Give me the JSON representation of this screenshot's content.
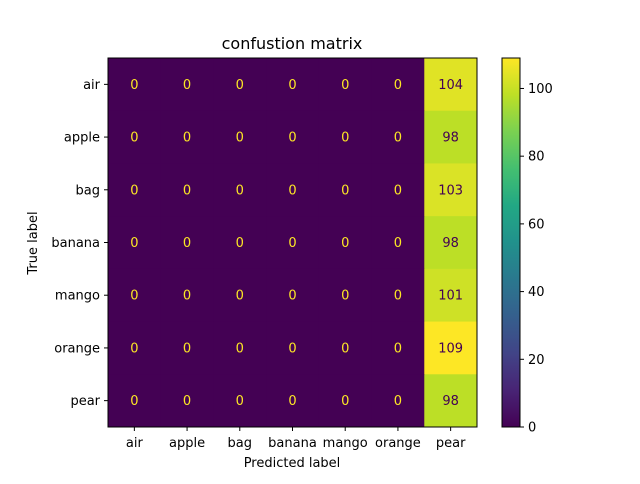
{
  "chart_data": {
    "type": "heatmap",
    "title": "confustion matrix",
    "xlabel": "Predicted label",
    "ylabel": "True label",
    "x_categories": [
      "air",
      "apple",
      "bag",
      "banana",
      "mango",
      "orange",
      "pear"
    ],
    "y_categories": [
      "air",
      "apple",
      "bag",
      "banana",
      "mango",
      "orange",
      "pear"
    ],
    "values": [
      [
        0,
        0,
        0,
        0,
        0,
        0,
        104
      ],
      [
        0,
        0,
        0,
        0,
        0,
        0,
        98
      ],
      [
        0,
        0,
        0,
        0,
        0,
        0,
        103
      ],
      [
        0,
        0,
        0,
        0,
        0,
        0,
        98
      ],
      [
        0,
        0,
        0,
        0,
        0,
        0,
        101
      ],
      [
        0,
        0,
        0,
        0,
        0,
        0,
        109
      ],
      [
        0,
        0,
        0,
        0,
        0,
        0,
        98
      ]
    ],
    "colormap": "viridis",
    "colorbar": {
      "range": [
        0,
        109
      ],
      "ticks": [
        0,
        20,
        40,
        60,
        80,
        100
      ]
    },
    "grid": false,
    "annotation_colors": {
      "low": "#fde725",
      "high": "#440154"
    }
  }
}
